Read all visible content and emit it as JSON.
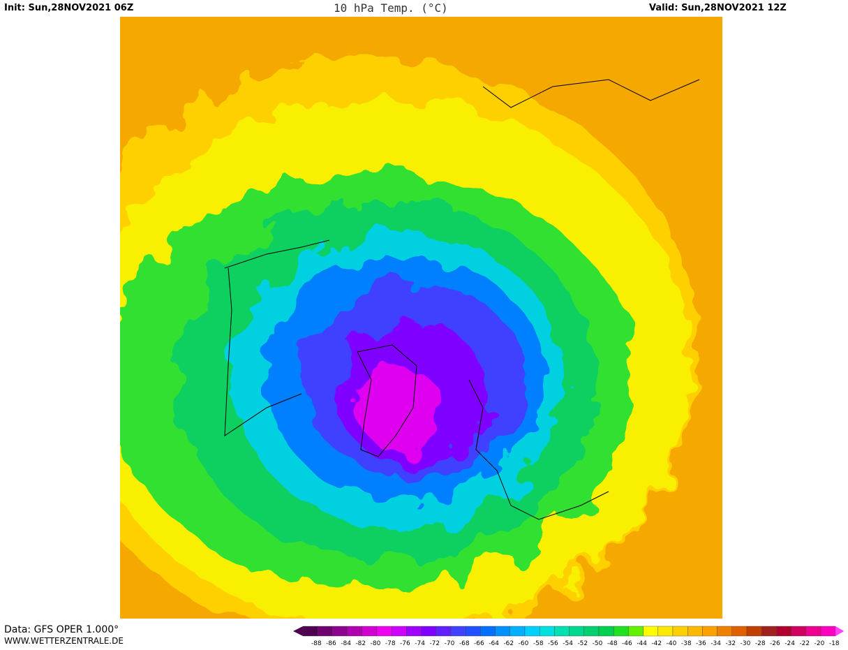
{
  "header": {
    "init": "Init: Sun,28NOV2021 06Z",
    "title": "10 hPa Temp. (°C)",
    "valid": "Valid: Sun,28NOV2021 12Z"
  },
  "footer": {
    "data": "Data: GFS OPER 1.000°",
    "website": "WWW.WETTERZENTRALE.DE"
  },
  "legend": {
    "ticks": [
      -88,
      -86,
      -84,
      -82,
      -80,
      -78,
      -76,
      -74,
      -72,
      -70,
      -68,
      -66,
      -64,
      -62,
      -60,
      -58,
      -56,
      -54,
      -52,
      -50,
      -48,
      -46,
      -44,
      -42,
      -40,
      -38,
      -36,
      -34,
      -32,
      -30,
      -28,
      -26,
      -24,
      -22,
      -20,
      -18
    ],
    "colors": [
      "#500050",
      "#700070",
      "#900090",
      "#b000b0",
      "#d000d0",
      "#f000f0",
      "#d000ff",
      "#a000ff",
      "#8000ff",
      "#6020ff",
      "#4040ff",
      "#2050ff",
      "#0070ff",
      "#0090ff",
      "#00b0ff",
      "#00d0ff",
      "#00e0e0",
      "#00e0b0",
      "#00d890",
      "#00d070",
      "#00d050",
      "#20e020",
      "#60f000",
      "#ffff00",
      "#ffe800",
      "#ffd000",
      "#ffb800",
      "#ffa000",
      "#f08000",
      "#e06000",
      "#c04000",
      "#a02020",
      "#b00030",
      "#d00060",
      "#f00090",
      "#ff00c0"
    ]
  }
}
